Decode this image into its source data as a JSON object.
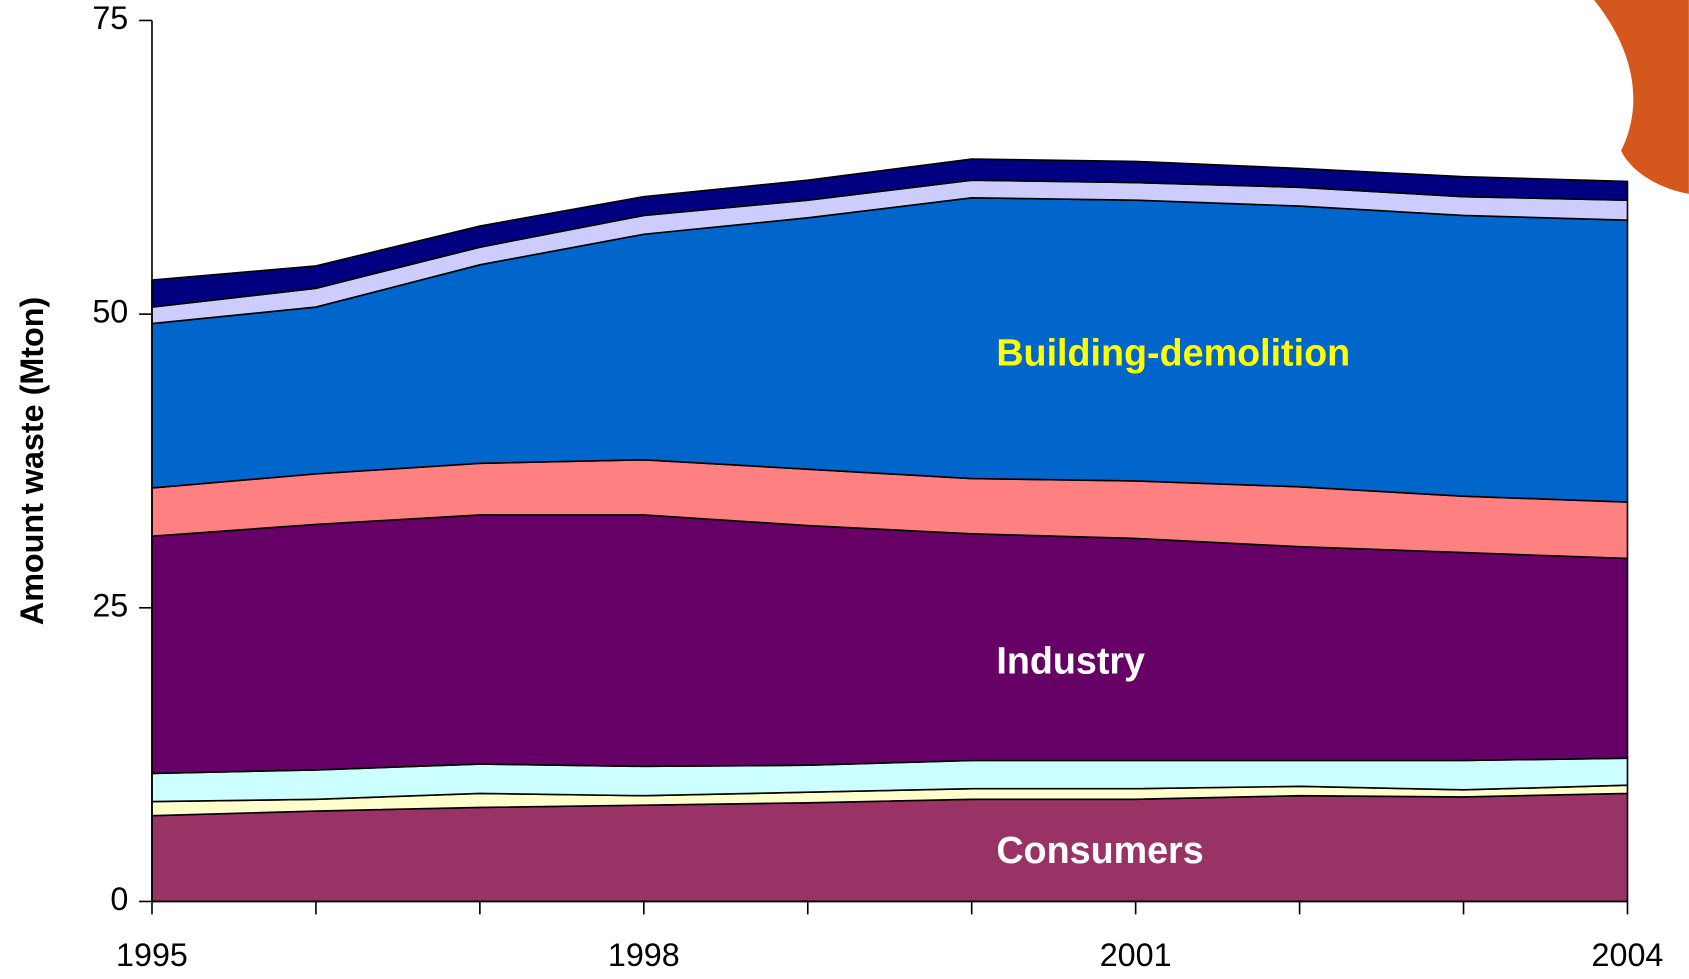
{
  "chart_data": {
    "type": "stacked_area",
    "ylabel": "Amount waste (Mton)",
    "x": [
      1995,
      1996,
      1997,
      1998,
      1999,
      2000,
      2001,
      2002,
      2003,
      2004
    ],
    "xlim": [
      1995,
      2004
    ],
    "xticks": [
      1995,
      1998,
      2001,
      2004
    ],
    "ylim": [
      0,
      75
    ],
    "yticks": [
      0,
      25,
      50,
      75
    ],
    "series": [
      {
        "name": "Consumers",
        "color": "#993366",
        "values": [
          7.3,
          7.7,
          8.0,
          8.2,
          8.4,
          8.7,
          8.7,
          9.0,
          8.9,
          9.2
        ]
      },
      {
        "color": "#ffffcc",
        "values": [
          1.2,
          1.0,
          1.2,
          0.8,
          0.9,
          0.9,
          0.9,
          0.8,
          0.6,
          0.7
        ]
      },
      {
        "color": "#ccffff",
        "values": [
          2.4,
          2.5,
          2.5,
          2.5,
          2.3,
          2.4,
          2.4,
          2.2,
          2.5,
          2.3
        ]
      },
      {
        "name": "Industry",
        "color": "#660066",
        "values": [
          20.2,
          20.9,
          21.2,
          21.4,
          20.4,
          19.3,
          18.9,
          18.2,
          17.7,
          17.0
        ]
      },
      {
        "color": "#ff8080",
        "values": [
          4.1,
          4.3,
          4.4,
          4.7,
          4.8,
          4.7,
          4.9,
          5.1,
          4.8,
          4.8
        ]
      },
      {
        "name": "Building-demolition",
        "color": "#0066cc",
        "values": [
          14.0,
          14.2,
          16.9,
          19.2,
          21.4,
          23.9,
          23.9,
          23.9,
          23.9,
          24.0
        ]
      },
      {
        "color": "#ccccff",
        "values": [
          1.4,
          1.6,
          1.5,
          1.6,
          1.5,
          1.5,
          1.5,
          1.6,
          1.6,
          1.7
        ]
      },
      {
        "color": "#000080",
        "values": [
          2.3,
          1.9,
          1.8,
          1.6,
          1.7,
          1.8,
          1.8,
          1.6,
          1.7,
          1.6
        ]
      }
    ]
  }
}
